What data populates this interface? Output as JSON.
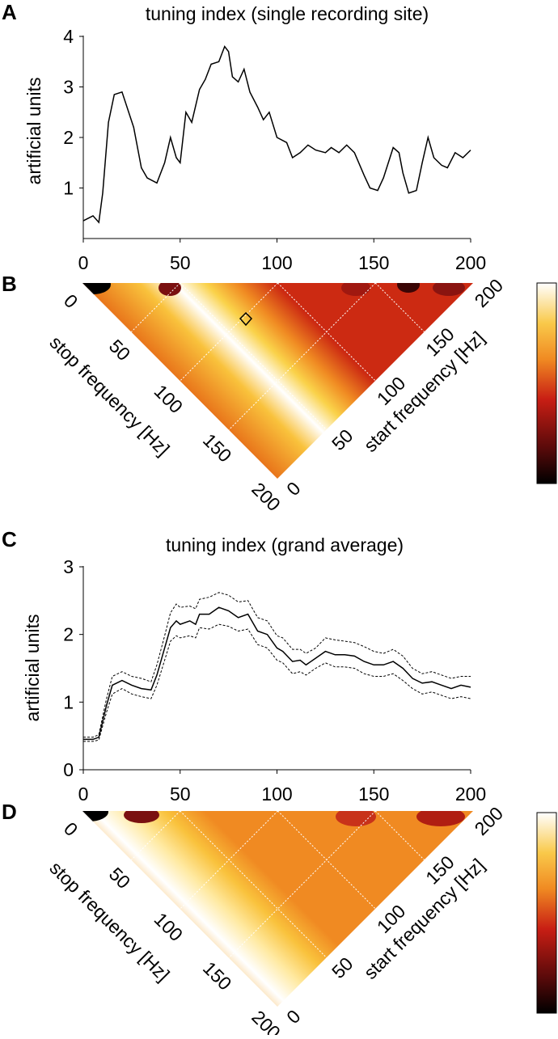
{
  "panels": {
    "a": {
      "letter": "A",
      "title": "tuning index (single recording site)",
      "ylabel": "artificial units"
    },
    "b": {
      "letter": "B",
      "stop_label": "stop frequency [Hz]",
      "start_label": "start frequency [Hz]"
    },
    "c": {
      "letter": "C",
      "title": "tuning index (grand average)",
      "ylabel": "artificial units"
    },
    "d": {
      "letter": "D",
      "stop_label": "stop frequency [Hz]",
      "start_label": "start frequency [Hz]"
    }
  },
  "colors": {
    "line": "#000000",
    "cmap_low": "#000000",
    "cmap_mid": "#c81e14",
    "cmap_high": "#ffffff",
    "grid": "#ffffff"
  },
  "chart_data": [
    {
      "type": "line",
      "id": "A",
      "title": "tuning index (single recording site)",
      "xlabel": "",
      "ylabel": "artificial units",
      "xlim": [
        0,
        200
      ],
      "ylim": [
        0,
        4
      ],
      "xticks": [
        "0",
        "50",
        "100",
        "150",
        "200"
      ],
      "yticks": [
        "1",
        "2",
        "3",
        "4"
      ],
      "x": [
        0,
        5,
        8,
        10,
        13,
        16,
        20,
        23,
        26,
        30,
        33,
        38,
        42,
        45,
        48,
        50,
        53,
        56,
        60,
        63,
        66,
        70,
        73,
        75,
        77,
        80,
        83,
        86,
        90,
        93,
        96,
        100,
        105,
        108,
        112,
        116,
        120,
        125,
        128,
        132,
        136,
        140,
        145,
        148,
        152,
        155,
        160,
        163,
        165,
        168,
        172,
        175,
        178,
        181,
        185,
        188,
        192,
        196,
        200
      ],
      "values": [
        0.35,
        0.45,
        0.32,
        0.9,
        2.3,
        2.85,
        2.9,
        2.55,
        2.2,
        1.4,
        1.2,
        1.1,
        1.5,
        2.0,
        1.6,
        1.5,
        2.5,
        2.3,
        2.95,
        3.15,
        3.45,
        3.5,
        3.8,
        3.7,
        3.2,
        3.1,
        3.35,
        2.9,
        2.6,
        2.35,
        2.5,
        2.0,
        1.9,
        1.6,
        1.7,
        1.85,
        1.75,
        1.7,
        1.8,
        1.7,
        1.85,
        1.7,
        1.25,
        1.0,
        0.95,
        1.2,
        1.8,
        1.7,
        1.3,
        0.9,
        0.95,
        1.5,
        2.0,
        1.6,
        1.45,
        1.4,
        1.7,
        1.6,
        1.75
      ]
    },
    {
      "type": "heatmap",
      "id": "B",
      "layout": "triangle",
      "stop_axis_label": "stop frequency [Hz]",
      "start_axis_label": "start frequency [Hz]",
      "stop_ticks": [
        "0",
        "50",
        "100",
        "150",
        "200"
      ],
      "start_ticks": [
        "0",
        "50",
        "100",
        "150",
        "200"
      ],
      "ridge_offset": 20,
      "ridge_width": 38,
      "peak_marker": {
        "start": 67,
        "stop": 87
      }
    },
    {
      "type": "line",
      "id": "C",
      "title": "tuning index (grand average)",
      "xlabel": "",
      "ylabel": "artificial units",
      "xlim": [
        0,
        200
      ],
      "ylim": [
        0,
        3
      ],
      "xticks": [
        "0",
        "50",
        "100",
        "150",
        "200"
      ],
      "yticks": [
        "0",
        "1",
        "2",
        "3"
      ],
      "x": [
        0,
        5,
        8,
        12,
        15,
        20,
        25,
        30,
        35,
        38,
        42,
        45,
        48,
        50,
        55,
        58,
        60,
        65,
        70,
        75,
        80,
        85,
        90,
        95,
        100,
        103,
        108,
        112,
        115,
        120,
        125,
        130,
        135,
        140,
        145,
        150,
        155,
        160,
        165,
        170,
        175,
        180,
        185,
        190,
        195,
        200
      ],
      "series": [
        {
          "name": "mean",
          "style": "solid",
          "values": [
            0.45,
            0.45,
            0.48,
            0.95,
            1.25,
            1.32,
            1.25,
            1.2,
            1.18,
            1.4,
            1.8,
            2.1,
            2.2,
            2.15,
            2.2,
            2.15,
            2.3,
            2.3,
            2.4,
            2.35,
            2.25,
            2.3,
            2.05,
            2.0,
            1.8,
            1.75,
            1.6,
            1.62,
            1.55,
            1.65,
            1.75,
            1.7,
            1.7,
            1.68,
            1.6,
            1.55,
            1.55,
            1.6,
            1.5,
            1.35,
            1.28,
            1.3,
            1.25,
            1.2,
            1.25,
            1.22
          ]
        },
        {
          "name": "upper",
          "style": "dashed",
          "values": [
            0.48,
            0.48,
            0.52,
            1.05,
            1.38,
            1.45,
            1.38,
            1.35,
            1.3,
            1.55,
            1.98,
            2.32,
            2.45,
            2.4,
            2.42,
            2.38,
            2.52,
            2.55,
            2.62,
            2.58,
            2.48,
            2.5,
            2.25,
            2.2,
            1.98,
            1.95,
            1.78,
            1.78,
            1.72,
            1.8,
            1.95,
            1.92,
            1.9,
            1.88,
            1.82,
            1.75,
            1.72,
            1.78,
            1.68,
            1.5,
            1.42,
            1.45,
            1.4,
            1.35,
            1.38,
            1.38
          ]
        },
        {
          "name": "lower",
          "style": "dashed",
          "values": [
            0.42,
            0.42,
            0.44,
            0.85,
            1.12,
            1.2,
            1.12,
            1.08,
            1.05,
            1.25,
            1.62,
            1.9,
            1.98,
            1.95,
            1.98,
            1.95,
            2.1,
            2.08,
            2.15,
            2.12,
            2.05,
            2.08,
            1.85,
            1.8,
            1.62,
            1.58,
            1.42,
            1.45,
            1.4,
            1.5,
            1.58,
            1.52,
            1.52,
            1.5,
            1.42,
            1.38,
            1.38,
            1.42,
            1.32,
            1.2,
            1.12,
            1.15,
            1.1,
            1.05,
            1.08,
            1.05
          ]
        }
      ]
    },
    {
      "type": "heatmap",
      "id": "D",
      "layout": "triangle",
      "stop_axis_label": "stop frequency [Hz]",
      "start_axis_label": "start frequency [Hz]",
      "stop_ticks": [
        "0",
        "50",
        "100",
        "150",
        "200"
      ],
      "start_ticks": [
        "0",
        "50",
        "100",
        "150",
        "200"
      ],
      "ridge_offset": 25,
      "ridge_width": 45
    }
  ]
}
